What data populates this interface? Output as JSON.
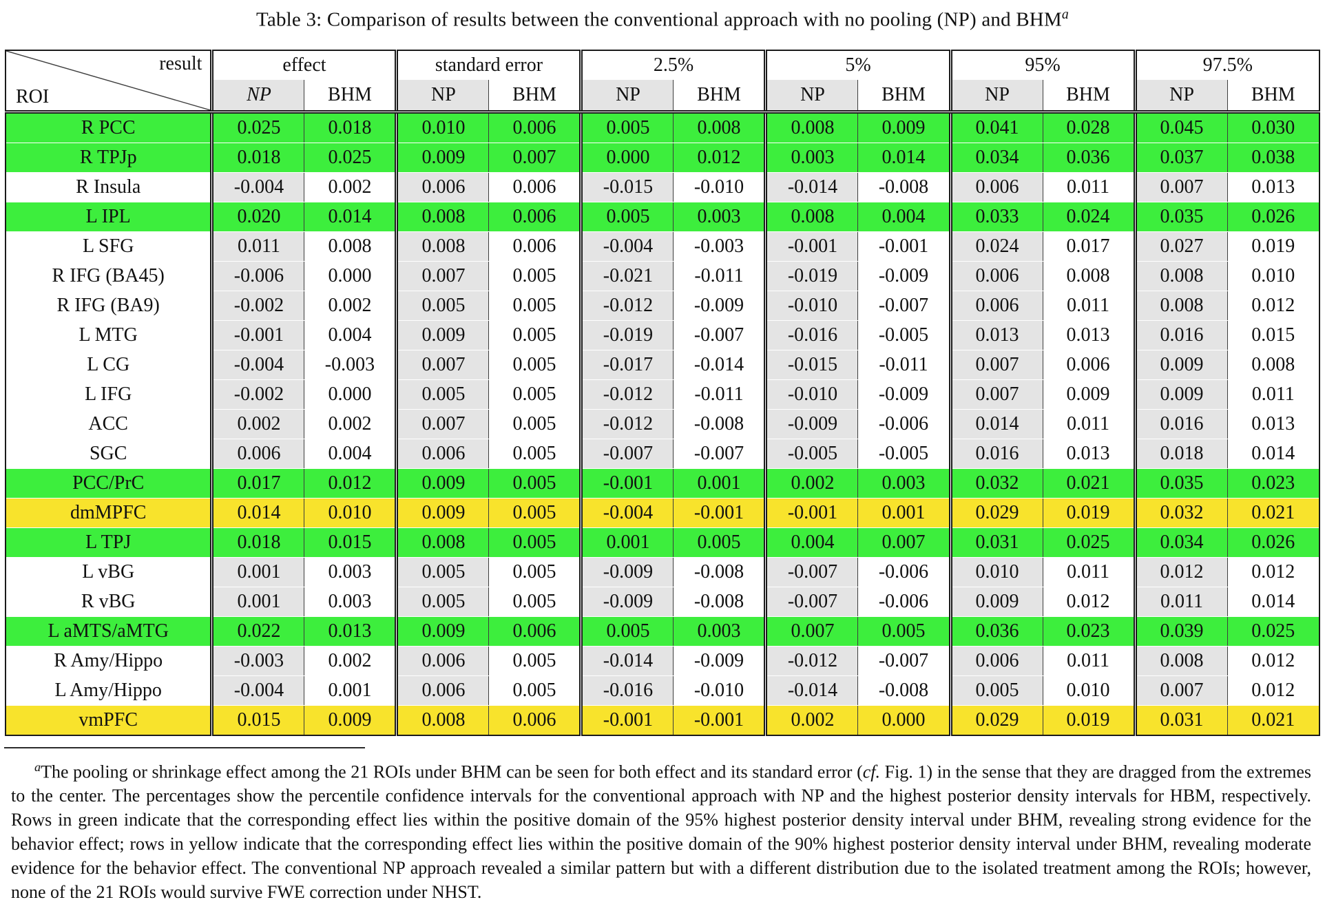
{
  "title": {
    "text": "Table 3: Comparison of results between the conventional approach with no pooling (NP) and BHM",
    "marker": "a"
  },
  "colors": {
    "green": "#3dee3d",
    "yellow": "#f8e32c",
    "gray": "#e4e4e4"
  },
  "table": {
    "corner": {
      "top": "result",
      "bottom": "ROI"
    },
    "groups": [
      {
        "label": "effect",
        "sub": [
          "NP",
          "BHM"
        ]
      },
      {
        "label": "standard error",
        "sub": [
          "NP",
          "BHM"
        ]
      },
      {
        "label": "2.5%",
        "sub": [
          "NP",
          "BHM"
        ]
      },
      {
        "label": "5%",
        "sub": [
          "NP",
          "BHM"
        ]
      },
      {
        "label": "95%",
        "sub": [
          "NP",
          "BHM"
        ]
      },
      {
        "label": "97.5%",
        "sub": [
          "NP",
          "BHM"
        ]
      }
    ],
    "rows": [
      {
        "roi": "R PCC",
        "highlight": "green",
        "values": [
          "0.025",
          "0.018",
          "0.010",
          "0.006",
          "0.005",
          "0.008",
          "0.008",
          "0.009",
          "0.041",
          "0.028",
          "0.045",
          "0.030"
        ]
      },
      {
        "roi": "R TPJp",
        "highlight": "green",
        "values": [
          "0.018",
          "0.025",
          "0.009",
          "0.007",
          "0.000",
          "0.012",
          "0.003",
          "0.014",
          "0.034",
          "0.036",
          "0.037",
          "0.038"
        ]
      },
      {
        "roi": "R Insula",
        "highlight": "plain",
        "values": [
          "-0.004",
          "0.002",
          "0.006",
          "0.006",
          "-0.015",
          "-0.010",
          "-0.014",
          "-0.008",
          "0.006",
          "0.011",
          "0.007",
          "0.013"
        ]
      },
      {
        "roi": "L IPL",
        "highlight": "green",
        "values": [
          "0.020",
          "0.014",
          "0.008",
          "0.006",
          "0.005",
          "0.003",
          "0.008",
          "0.004",
          "0.033",
          "0.024",
          "0.035",
          "0.026"
        ]
      },
      {
        "roi": "L SFG",
        "highlight": "plain",
        "values": [
          "0.011",
          "0.008",
          "0.008",
          "0.006",
          "-0.004",
          "-0.003",
          "-0.001",
          "-0.001",
          "0.024",
          "0.017",
          "0.027",
          "0.019"
        ]
      },
      {
        "roi": "R IFG (BA45)",
        "highlight": "plain",
        "values": [
          "-0.006",
          "0.000",
          "0.007",
          "0.005",
          "-0.021",
          "-0.011",
          "-0.019",
          "-0.009",
          "0.006",
          "0.008",
          "0.008",
          "0.010"
        ]
      },
      {
        "roi": "R IFG (BA9)",
        "highlight": "plain",
        "values": [
          "-0.002",
          "0.002",
          "0.005",
          "0.005",
          "-0.012",
          "-0.009",
          "-0.010",
          "-0.007",
          "0.006",
          "0.011",
          "0.008",
          "0.012"
        ]
      },
      {
        "roi": "L MTG",
        "highlight": "plain",
        "values": [
          "-0.001",
          "0.004",
          "0.009",
          "0.005",
          "-0.019",
          "-0.007",
          "-0.016",
          "-0.005",
          "0.013",
          "0.013",
          "0.016",
          "0.015"
        ]
      },
      {
        "roi": "L CG",
        "highlight": "plain",
        "values": [
          "-0.004",
          "-0.003",
          "0.007",
          "0.005",
          "-0.017",
          "-0.014",
          "-0.015",
          "-0.011",
          "0.007",
          "0.006",
          "0.009",
          "0.008"
        ]
      },
      {
        "roi": "L IFG",
        "highlight": "plain",
        "values": [
          "-0.002",
          "0.000",
          "0.005",
          "0.005",
          "-0.012",
          "-0.011",
          "-0.010",
          "-0.009",
          "0.007",
          "0.009",
          "0.009",
          "0.011"
        ]
      },
      {
        "roi": "ACC",
        "highlight": "plain",
        "values": [
          "0.002",
          "0.002",
          "0.007",
          "0.005",
          "-0.012",
          "-0.008",
          "-0.009",
          "-0.006",
          "0.014",
          "0.011",
          "0.016",
          "0.013"
        ]
      },
      {
        "roi": "SGC",
        "highlight": "plain",
        "values": [
          "0.006",
          "0.004",
          "0.006",
          "0.005",
          "-0.007",
          "-0.007",
          "-0.005",
          "-0.005",
          "0.016",
          "0.013",
          "0.018",
          "0.014"
        ]
      },
      {
        "roi": "PCC/PrC",
        "highlight": "green",
        "values": [
          "0.017",
          "0.012",
          "0.009",
          "0.005",
          "-0.001",
          "0.001",
          "0.002",
          "0.003",
          "0.032",
          "0.021",
          "0.035",
          "0.023"
        ]
      },
      {
        "roi": "dmMPFC",
        "highlight": "yellow",
        "values": [
          "0.014",
          "0.010",
          "0.009",
          "0.005",
          "-0.004",
          "-0.001",
          "-0.001",
          "0.001",
          "0.029",
          "0.019",
          "0.032",
          "0.021"
        ]
      },
      {
        "roi": "L TPJ",
        "highlight": "green",
        "values": [
          "0.018",
          "0.015",
          "0.008",
          "0.005",
          "0.001",
          "0.005",
          "0.004",
          "0.007",
          "0.031",
          "0.025",
          "0.034",
          "0.026"
        ]
      },
      {
        "roi": "L vBG",
        "highlight": "plain",
        "values": [
          "0.001",
          "0.003",
          "0.005",
          "0.005",
          "-0.009",
          "-0.008",
          "-0.007",
          "-0.006",
          "0.010",
          "0.011",
          "0.012",
          "0.012"
        ]
      },
      {
        "roi": "R vBG",
        "highlight": "plain",
        "values": [
          "0.001",
          "0.003",
          "0.005",
          "0.005",
          "-0.009",
          "-0.008",
          "-0.007",
          "-0.006",
          "0.009",
          "0.012",
          "0.011",
          "0.014"
        ]
      },
      {
        "roi": "L aMTS/aMTG",
        "highlight": "green",
        "values": [
          "0.022",
          "0.013",
          "0.009",
          "0.006",
          "0.005",
          "0.003",
          "0.007",
          "0.005",
          "0.036",
          "0.023",
          "0.039",
          "0.025"
        ]
      },
      {
        "roi": "R Amy/Hippo",
        "highlight": "plain",
        "values": [
          "-0.003",
          "0.002",
          "0.006",
          "0.005",
          "-0.014",
          "-0.009",
          "-0.012",
          "-0.007",
          "0.006",
          "0.011",
          "0.008",
          "0.012"
        ]
      },
      {
        "roi": "L Amy/Hippo",
        "highlight": "plain",
        "values": [
          "-0.004",
          "0.001",
          "0.006",
          "0.005",
          "-0.016",
          "-0.010",
          "-0.014",
          "-0.008",
          "0.005",
          "0.010",
          "0.007",
          "0.012"
        ]
      },
      {
        "roi": "vmPFC",
        "highlight": "yellow",
        "values": [
          "0.015",
          "0.009",
          "0.008",
          "0.006",
          "-0.001",
          "-0.001",
          "0.002",
          "0.000",
          "0.029",
          "0.019",
          "0.031",
          "0.021"
        ]
      }
    ]
  },
  "footnote": {
    "marker": "a",
    "segments": [
      {
        "text": "The pooling or shrinkage effect among the 21 ROIs under BHM can be seen for both effect and its standard error (",
        "style": "normal"
      },
      {
        "text": "cf.",
        "style": "italic"
      },
      {
        "text": " Fig. 1) in the sense that they are dragged from the extremes to the center. The percentages show the percentile confidence intervals for the conventional approach with NP and the highest posterior density intervals for HBM, respectively. Rows in green indicate that the corresponding effect lies within the positive domain of the 95% highest posterior density interval under BHM, revealing strong evidence for the behavior effect; rows in yellow indicate that the corresponding effect lies within the positive domain of the 90% highest posterior density interval under BHM, revealing moderate evidence for the behavior effect. The conventional NP approach revealed a similar pattern but with a different distribution due to the isolated treatment among the ROIs; however, none of the 21 ROIs would survive FWE correction under NHST.",
        "style": "normal"
      }
    ]
  }
}
